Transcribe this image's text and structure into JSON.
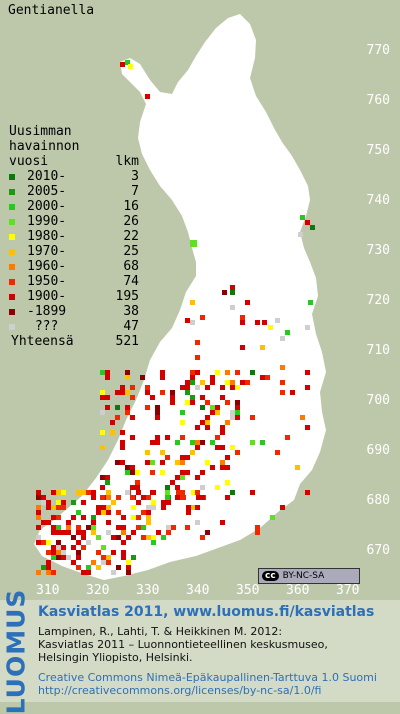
{
  "title": "Gentianella",
  "legend": {
    "header": [
      "Uusimman",
      "havainnon",
      "vuosi"
    ],
    "count_header": "lkm",
    "rows": [
      {
        "label": "2010-",
        "count": "3",
        "color": "#0a7a0a"
      },
      {
        "label": "2005-",
        "count": "7",
        "color": "#1a9a12"
      },
      {
        "label": "2000-",
        "count": "16",
        "color": "#27c81f"
      },
      {
        "label": "1990-",
        "count": "26",
        "color": "#5ee023"
      },
      {
        "label": "1980-",
        "count": "22",
        "color": "#ffff00"
      },
      {
        "label": "1970-",
        "count": "25",
        "color": "#ffc000"
      },
      {
        "label": "1960-",
        "count": "68",
        "color": "#ff7a00"
      },
      {
        "label": "1950-",
        "count": "74",
        "color": "#f02800"
      },
      {
        "label": "1900-",
        "count": "195",
        "color": "#d40000"
      },
      {
        "label": "-1899",
        "count": "38",
        "color": "#8b0000"
      },
      {
        "label": " ???",
        "count": "47",
        "color": "#cfcfcf"
      }
    ],
    "total_label": "Yhteensä",
    "total_count": "521"
  },
  "y_axis_labels": [
    "770",
    "760",
    "750",
    "740",
    "730",
    "720",
    "710",
    "700",
    "690",
    "680",
    "670"
  ],
  "x_axis_labels": [
    "310",
    "320",
    "330",
    "340",
    "350",
    "360",
    "370"
  ],
  "license_badge": {
    "cc": "cc",
    "text": "BY-NC-SA"
  },
  "footer": {
    "brand": "LUOMUS",
    "line1": "Kasviatlas 2011, www.luomus.fi/kasviatlas",
    "citation": [
      "Lampinen, R., Lahti, T. & Heikkinen M. 2012:",
      "Kasviatlas 2011 – Luonnontieteellinen keskusmuseo,",
      "Helsingin Yliopisto, Helsinki."
    ],
    "license": [
      "Creative Commons Nimeä-Epäkaupallinen-Tarttuva 1.0 Suomi",
      "http://creativecommons.org/licenses/by-nc-sa/1.0/fi"
    ]
  },
  "colors": {
    "background": "#bdc8ab",
    "land": "#ffffff",
    "brand_blue": "#2d6fb8"
  }
}
